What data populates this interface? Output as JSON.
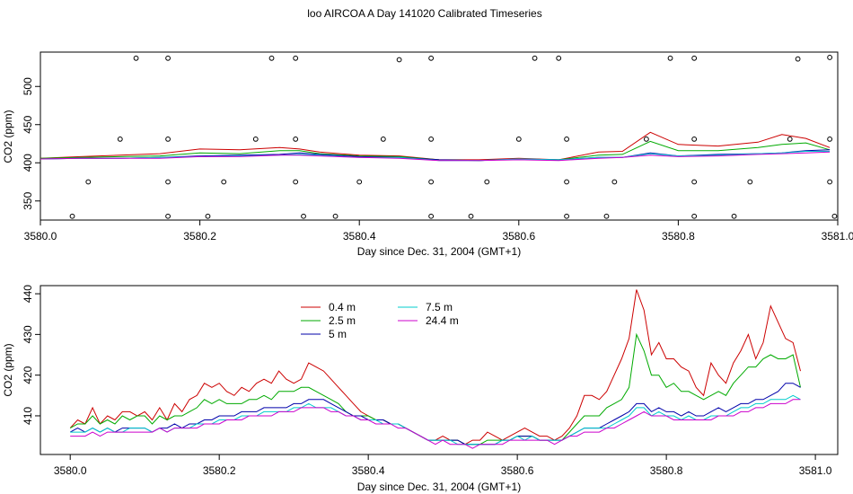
{
  "figure_title": "loo AIRCOA A  Day 141020  Calibrated Timeseries",
  "chart_data": [
    {
      "type": "line",
      "xlabel": "Day since Dec. 31, 2004 (GMT+1)",
      "ylabel": "CO2 (ppm)",
      "xlim": [
        3580.0,
        3581.0
      ],
      "ylim": [
        325,
        545
      ],
      "xticks": [
        3580.0,
        3580.2,
        3580.4,
        3580.6,
        3580.8,
        3581.0
      ],
      "xtick_labels": [
        "3580.0",
        "3580.2",
        "3580.4",
        "3580.6",
        "3580.8",
        "3581.0"
      ],
      "yticks": [
        350,
        400,
        450,
        500
      ],
      "ytick_labels": [
        "350",
        "400",
        "450",
        "500"
      ],
      "colors": [
        "#cc0000",
        "#00aa00",
        "#0000aa",
        "#00cccc",
        "#cc00cc"
      ],
      "x": [
        3580.0,
        3580.05,
        3580.1,
        3580.15,
        3580.2,
        3580.25,
        3580.3,
        3580.325,
        3580.35,
        3580.4,
        3580.45,
        3580.5,
        3580.55,
        3580.6,
        3580.65,
        3580.7,
        3580.73,
        3580.765,
        3580.8,
        3580.85,
        3580.9,
        3580.93,
        3580.96,
        3580.99
      ],
      "series": [
        {
          "values": [
            406,
            408,
            410,
            412,
            418,
            417,
            420,
            418,
            414,
            410,
            409,
            404,
            404,
            406,
            404,
            414,
            415,
            440,
            424,
            422,
            427,
            437,
            432,
            420
          ]
        },
        {
          "values": [
            406,
            407,
            408,
            409,
            413,
            412,
            416,
            416,
            412,
            409,
            408,
            404,
            403,
            405,
            404,
            410,
            411,
            428,
            416,
            416,
            420,
            424,
            426,
            417
          ]
        },
        {
          "values": [
            405,
            406,
            406,
            407,
            409,
            410,
            411,
            413,
            411,
            408,
            407,
            404,
            403,
            405,
            404,
            407,
            407,
            413,
            409,
            411,
            412,
            413,
            416,
            417
          ]
        },
        {
          "values": [
            405,
            406,
            406,
            407,
            408,
            409,
            410,
            411,
            410,
            407,
            407,
            403,
            403,
            405,
            404,
            407,
            407,
            412,
            409,
            410,
            412,
            413,
            415,
            415
          ]
        },
        {
          "values": [
            405,
            406,
            406,
            406,
            408,
            408,
            410,
            410,
            409,
            407,
            406,
            403,
            403,
            404,
            403,
            406,
            407,
            410,
            408,
            409,
            411,
            412,
            413,
            414
          ]
        }
      ],
      "markers": [
        [
          3580.04,
          330
        ],
        [
          3580.16,
          330
        ],
        [
          3580.21,
          330
        ],
        [
          3580.33,
          330
        ],
        [
          3580.37,
          330
        ],
        [
          3580.49,
          330
        ],
        [
          3580.54,
          330
        ],
        [
          3580.66,
          330
        ],
        [
          3580.71,
          330
        ],
        [
          3580.82,
          330
        ],
        [
          3580.87,
          330
        ],
        [
          3580.996,
          330
        ],
        [
          3580.06,
          375
        ],
        [
          3580.16,
          375
        ],
        [
          3580.23,
          375
        ],
        [
          3580.32,
          375
        ],
        [
          3580.4,
          375
        ],
        [
          3580.49,
          375
        ],
        [
          3580.56,
          375
        ],
        [
          3580.66,
          375
        ],
        [
          3580.72,
          375
        ],
        [
          3580.82,
          375
        ],
        [
          3580.89,
          375
        ],
        [
          3580.99,
          375
        ],
        [
          3580.1,
          431
        ],
        [
          3580.16,
          431
        ],
        [
          3580.27,
          431
        ],
        [
          3580.32,
          431
        ],
        [
          3580.43,
          431
        ],
        [
          3580.49,
          431
        ],
        [
          3580.6,
          431
        ],
        [
          3580.66,
          431
        ],
        [
          3580.76,
          431
        ],
        [
          3580.82,
          431
        ],
        [
          3580.94,
          431
        ],
        [
          3580.99,
          431
        ],
        [
          3580.12,
          537
        ],
        [
          3580.16,
          537
        ],
        [
          3580.29,
          537
        ],
        [
          3580.32,
          537
        ],
        [
          3580.45,
          535
        ],
        [
          3580.49,
          537
        ],
        [
          3580.62,
          537
        ],
        [
          3580.65,
          537
        ],
        [
          3580.79,
          537
        ],
        [
          3580.82,
          537
        ],
        [
          3580.95,
          536
        ],
        [
          3580.99,
          538
        ]
      ]
    },
    {
      "type": "line",
      "xlabel": "Day since Dec. 31, 2004 (GMT+1)",
      "ylabel": "CO2 (ppm)",
      "xlim": [
        3579.96,
        3581.03
      ],
      "ylim": [
        400.5,
        442
      ],
      "xticks": [
        3580.0,
        3580.2,
        3580.4,
        3580.6,
        3580.8,
        3581.0
      ],
      "xtick_labels": [
        "3580.0",
        "3580.2",
        "3580.4",
        "3580.6",
        "3580.8",
        "3581.0"
      ],
      "yticks": [
        410,
        420,
        430,
        440
      ],
      "ytick_labels": [
        "410",
        "420",
        "430",
        "440"
      ],
      "legend": {
        "position": "top-left",
        "columns": 2
      },
      "x": [
        3580.0,
        3580.01,
        3580.02,
        3580.03,
        3580.04,
        3580.05,
        3580.06,
        3580.07,
        3580.08,
        3580.09,
        3580.1,
        3580.11,
        3580.12,
        3580.13,
        3580.14,
        3580.15,
        3580.16,
        3580.17,
        3580.18,
        3580.19,
        3580.2,
        3580.21,
        3580.22,
        3580.23,
        3580.24,
        3580.25,
        3580.26,
        3580.27,
        3580.28,
        3580.29,
        3580.3,
        3580.31,
        3580.32,
        3580.33,
        3580.34,
        3580.35,
        3580.36,
        3580.37,
        3580.38,
        3580.39,
        3580.4,
        3580.41,
        3580.42,
        3580.43,
        3580.44,
        3580.45,
        3580.46,
        3580.47,
        3580.48,
        3580.49,
        3580.5,
        3580.51,
        3580.52,
        3580.53,
        3580.54,
        3580.55,
        3580.56,
        3580.57,
        3580.58,
        3580.59,
        3580.6,
        3580.61,
        3580.62,
        3580.63,
        3580.64,
        3580.65,
        3580.66,
        3580.67,
        3580.68,
        3580.69,
        3580.7,
        3580.71,
        3580.72,
        3580.73,
        3580.74,
        3580.75,
        3580.76,
        3580.77,
        3580.78,
        3580.79,
        3580.8,
        3580.81,
        3580.82,
        3580.83,
        3580.84,
        3580.85,
        3580.86,
        3580.87,
        3580.88,
        3580.89,
        3580.9,
        3580.91,
        3580.92,
        3580.93,
        3580.94,
        3580.95,
        3580.96,
        3580.97,
        3580.98
      ],
      "series": [
        {
          "name": "0.4 m",
          "color": "#cc0000",
          "values": [
            407,
            409,
            408,
            412,
            408,
            410,
            409,
            411,
            411,
            410,
            411,
            409,
            412,
            409,
            413,
            411,
            414,
            415,
            418,
            417,
            418,
            416,
            415,
            417,
            416,
            418,
            419,
            418,
            421,
            419,
            418,
            419,
            423,
            422,
            421,
            419,
            417,
            415,
            413,
            411,
            410,
            409,
            409,
            408,
            408,
            407,
            406,
            405,
            404,
            404,
            405,
            404,
            404,
            403,
            404,
            404,
            406,
            405,
            404,
            405,
            406,
            407,
            406,
            405,
            405,
            404,
            405,
            407,
            410,
            415,
            415,
            414,
            416,
            420,
            424,
            429,
            441,
            436,
            425,
            428,
            424,
            424,
            422,
            421,
            417,
            415,
            423,
            420,
            418,
            423,
            426,
            430,
            424,
            428,
            437,
            433,
            429,
            428,
            421
          ]
        },
        {
          "name": "2.5 m",
          "color": "#00aa00",
          "values": [
            407,
            408,
            408,
            410,
            408,
            409,
            408,
            410,
            409,
            410,
            410,
            408,
            410,
            409,
            410,
            410,
            411,
            412,
            414,
            413,
            414,
            413,
            413,
            413,
            414,
            414,
            415,
            414,
            416,
            416,
            416,
            417,
            417,
            416,
            415,
            414,
            413,
            411,
            410,
            410,
            410,
            409,
            409,
            408,
            408,
            407,
            406,
            405,
            404,
            404,
            404,
            404,
            404,
            403,
            403,
            403,
            404,
            404,
            404,
            404,
            405,
            405,
            405,
            404,
            404,
            404,
            404,
            406,
            408,
            410,
            410,
            410,
            412,
            413,
            414,
            417,
            430,
            426,
            420,
            420,
            417,
            418,
            416,
            416,
            415,
            414,
            415,
            416,
            415,
            418,
            420,
            422,
            422,
            424,
            425,
            424,
            424,
            425,
            417
          ]
        },
        {
          "name": "5 m",
          "color": "#0000aa",
          "values": [
            406,
            407,
            406,
            407,
            406,
            407,
            406,
            407,
            407,
            407,
            407,
            406,
            407,
            407,
            408,
            407,
            408,
            408,
            409,
            409,
            410,
            410,
            410,
            411,
            411,
            411,
            412,
            412,
            412,
            412,
            413,
            413,
            414,
            414,
            414,
            413,
            412,
            411,
            410,
            410,
            409,
            409,
            409,
            408,
            408,
            407,
            406,
            405,
            404,
            404,
            404,
            404,
            404,
            403,
            403,
            403,
            403,
            403,
            404,
            404,
            405,
            405,
            405,
            404,
            404,
            404,
            404,
            405,
            406,
            407,
            407,
            407,
            408,
            409,
            410,
            411,
            413,
            413,
            411,
            412,
            411,
            411,
            410,
            411,
            410,
            410,
            411,
            412,
            411,
            412,
            413,
            413,
            414,
            414,
            415,
            416,
            418,
            418,
            417
          ]
        },
        {
          "name": "7.5 m",
          "color": "#00cccc",
          "values": [
            406,
            406,
            406,
            407,
            406,
            407,
            406,
            406,
            407,
            407,
            407,
            406,
            407,
            406,
            407,
            407,
            407,
            408,
            408,
            408,
            409,
            409,
            409,
            410,
            410,
            410,
            411,
            411,
            411,
            411,
            412,
            412,
            413,
            412,
            412,
            412,
            411,
            410,
            410,
            409,
            409,
            409,
            408,
            408,
            408,
            407,
            406,
            405,
            404,
            404,
            404,
            404,
            403,
            403,
            403,
            403,
            403,
            403,
            404,
            404,
            405,
            404,
            405,
            404,
            404,
            404,
            404,
            405,
            406,
            407,
            407,
            407,
            407,
            408,
            409,
            410,
            412,
            412,
            410,
            411,
            410,
            410,
            409,
            410,
            409,
            409,
            410,
            410,
            410,
            411,
            412,
            412,
            413,
            413,
            414,
            414,
            414,
            415,
            414
          ]
        },
        {
          "name": "24.4 m",
          "color": "#cc00cc",
          "values": [
            405,
            405,
            405,
            406,
            405,
            406,
            406,
            406,
            406,
            406,
            406,
            406,
            407,
            406,
            407,
            407,
            407,
            407,
            408,
            408,
            408,
            409,
            409,
            409,
            410,
            410,
            410,
            410,
            411,
            411,
            411,
            412,
            412,
            412,
            412,
            411,
            411,
            410,
            410,
            409,
            409,
            408,
            408,
            408,
            407,
            407,
            406,
            405,
            404,
            403,
            404,
            403,
            403,
            403,
            402,
            403,
            403,
            403,
            403,
            404,
            404,
            404,
            404,
            404,
            404,
            403,
            404,
            405,
            405,
            406,
            406,
            406,
            407,
            407,
            408,
            409,
            410,
            411,
            410,
            410,
            410,
            409,
            409,
            409,
            409,
            409,
            409,
            410,
            410,
            410,
            411,
            411,
            412,
            412,
            413,
            413,
            413,
            414,
            414
          ]
        }
      ]
    }
  ]
}
